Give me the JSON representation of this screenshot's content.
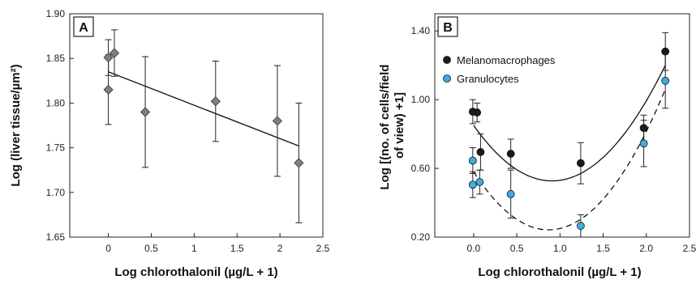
{
  "chart_data": [
    {
      "panel": "A",
      "type": "scatter",
      "xlabel": "Log chlorothalonil (µg/L + 1)",
      "ylabel": "Log (liver tissue/µm²)",
      "xlim": [
        -0.45,
        2.5
      ],
      "ylim": [
        1.65,
        1.9
      ],
      "x_ticks": [
        "0",
        "0.5",
        "1",
        "1.5",
        "2",
        "2.5"
      ],
      "y_ticks": [
        "1.65",
        "1.70",
        "1.75",
        "1.80",
        "1.85",
        "1.90"
      ],
      "grid": false,
      "series": [
        {
          "marker": "diamond",
          "color": "#808080",
          "points": [
            {
              "x": 0.0,
              "y": 1.851,
              "err_low": 1.831,
              "err_high": 1.871
            },
            {
              "x": 0.0,
              "y": 1.815,
              "err_low": 1.776,
              "err_high": 1.854
            },
            {
              "x": 0.07,
              "y": 1.856,
              "err_low": 1.83,
              "err_high": 1.882
            },
            {
              "x": 0.43,
              "y": 1.79,
              "err_low": 1.728,
              "err_high": 1.852
            },
            {
              "x": 1.25,
              "y": 1.802,
              "err_low": 1.757,
              "err_high": 1.847
            },
            {
              "x": 1.97,
              "y": 1.78,
              "err_low": 1.718,
              "err_high": 1.842
            },
            {
              "x": 2.22,
              "y": 1.733,
              "err_low": 1.666,
              "err_high": 1.8
            }
          ]
        }
      ],
      "fit_line": {
        "x": [
          0.0,
          2.22
        ],
        "y": [
          1.835,
          1.752
        ]
      }
    },
    {
      "panel": "B",
      "type": "scatter",
      "xlabel": "Log chlorothalonil (µg/L + 1)",
      "ylabel": "Log [(no. of cells/field of view) +1]",
      "xlim": [
        -0.45,
        2.5
      ],
      "ylim": [
        0.2,
        1.5
      ],
      "x_ticks": [
        "0.0",
        "0.5",
        "1.0",
        "1.5",
        "2.0",
        "2.5"
      ],
      "y_ticks": [
        "0.20",
        "0.60",
        "1.00",
        "1.40"
      ],
      "grid": false,
      "legend_position": "upper-left",
      "series": [
        {
          "name": "Melanomacrophages",
          "color": "#1a1a1a",
          "points": [
            {
              "x": -0.01,
              "y": 0.93,
              "err_low": 0.86,
              "err_high": 1.0
            },
            {
              "x": 0.04,
              "y": 0.925,
              "err_low": 0.87,
              "err_high": 0.98
            },
            {
              "x": 0.08,
              "y": 0.695,
              "err_low": 0.59,
              "err_high": 0.8
            },
            {
              "x": 0.43,
              "y": 0.685,
              "err_low": 0.6,
              "err_high": 0.77
            },
            {
              "x": 1.24,
              "y": 0.63,
              "err_low": 0.51,
              "err_high": 0.75
            },
            {
              "x": 1.97,
              "y": 0.835,
              "err_low": 0.76,
              "err_high": 0.91
            },
            {
              "x": 2.22,
              "y": 1.28,
              "err_low": 1.17,
              "err_high": 1.39
            }
          ],
          "fit_curve": {
            "x": [
              0.0,
              1.15,
              2.22
            ],
            "y": [
              0.85,
              0.55,
              1.2
            ],
            "style": "solid"
          }
        },
        {
          "name": "Granulocytes",
          "color": "#3aaee0",
          "points": [
            {
              "x": -0.01,
              "y": 0.505,
              "err_low": 0.43,
              "err_high": 0.58
            },
            {
              "x": -0.01,
              "y": 0.645,
              "err_low": 0.57,
              "err_high": 0.72
            },
            {
              "x": 0.07,
              "y": 0.52,
              "err_low": 0.45,
              "err_high": 0.59
            },
            {
              "x": 0.43,
              "y": 0.45,
              "err_low": 0.31,
              "err_high": 0.59
            },
            {
              "x": 1.24,
              "y": 0.265,
              "err_low": 0.2,
              "err_high": 0.33
            },
            {
              "x": 1.97,
              "y": 0.745,
              "err_low": 0.61,
              "err_high": 0.88
            },
            {
              "x": 2.22,
              "y": 1.11,
              "err_low": 0.95,
              "err_high": 1.27
            }
          ],
          "fit_curve": {
            "x": [
              0.0,
              0.95,
              2.22
            ],
            "y": [
              0.58,
              0.245,
              1.06
            ],
            "style": "dashed"
          }
        }
      ]
    }
  ]
}
